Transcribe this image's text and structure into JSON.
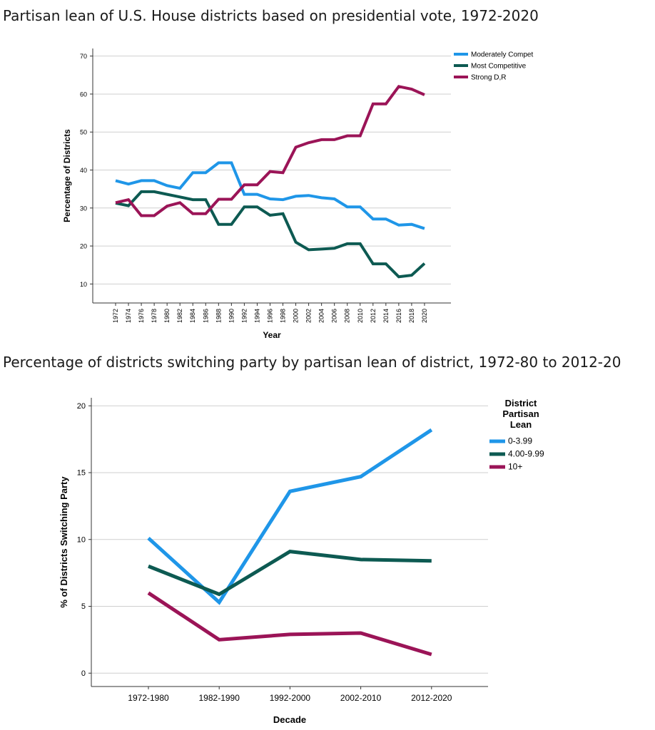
{
  "titles": {
    "chart1": "Partisan lean of U.S. House districts based on presidential vote, 1972-2020",
    "chart2": "Percentage of districts switching party by partisan lean of district, 1972-80 to 2012-20"
  },
  "chart_data": [
    {
      "type": "line",
      "xlabel": "Year",
      "ylabel": "Percentage of Districts",
      "x": [
        "1972",
        "1974",
        "1976",
        "1978",
        "1980",
        "1982",
        "1984",
        "1986",
        "1988",
        "1990",
        "1992",
        "1994",
        "1996",
        "1998",
        "2000",
        "2002",
        "2004",
        "2006",
        "2008",
        "2010",
        "2012",
        "2014",
        "2016",
        "2018",
        "2020"
      ],
      "ylim": [
        5,
        72
      ],
      "yticks": [
        10,
        20,
        30,
        40,
        50,
        60,
        70
      ],
      "grid": true,
      "legend_position": "top-right",
      "series": [
        {
          "name": "Moderately Compet",
          "color": "#1f96e8",
          "values": [
            37.2,
            36.3,
            37.2,
            37.2,
            35.9,
            35.2,
            39.3,
            39.3,
            41.9,
            41.9,
            33.6,
            33.6,
            32.4,
            32.2,
            33.1,
            33.3,
            32.7,
            32.4,
            30.3,
            30.3,
            27.1,
            27.1,
            25.5,
            25.7,
            24.6
          ]
        },
        {
          "name": "Most Competitive",
          "color": "#0d5a52",
          "values": [
            31.3,
            30.6,
            34.3,
            34.3,
            33.6,
            32.9,
            32.2,
            32.2,
            25.7,
            25.7,
            30.3,
            30.3,
            28.1,
            28.5,
            21.0,
            19.0,
            19.2,
            19.4,
            20.6,
            20.6,
            15.3,
            15.3,
            11.9,
            12.3,
            15.4
          ]
        },
        {
          "name": "Strong D,R",
          "color": "#9b1457",
          "values": [
            31.4,
            32.2,
            28.0,
            28.0,
            30.5,
            31.4,
            28.5,
            28.5,
            32.3,
            32.3,
            36.1,
            36.1,
            39.6,
            39.3,
            46.0,
            47.2,
            48.0,
            48.0,
            49.0,
            49.0,
            57.4,
            57.4,
            62.0,
            61.3,
            59.8
          ]
        }
      ]
    },
    {
      "type": "line",
      "xlabel": "Decade",
      "ylabel": "% of Districts Switching Party",
      "categories": [
        "1972-1980",
        "1982-1990",
        "1992-2000",
        "2002-2010",
        "2012-2020"
      ],
      "ylim": [
        -1,
        20.6
      ],
      "yticks": [
        0,
        5,
        10,
        15,
        20
      ],
      "grid": true,
      "legend_title": "District Partisan Lean",
      "legend_position": "top-right",
      "series": [
        {
          "name": "0-3.99",
          "color": "#1f96e8",
          "values": [
            10.1,
            5.3,
            13.6,
            14.7,
            18.2
          ]
        },
        {
          "name": "4.00-9.99",
          "color": "#0d5a52",
          "values": [
            8.0,
            5.9,
            9.1,
            8.5,
            8.4
          ]
        },
        {
          "name": "10+",
          "color": "#9b1457",
          "values": [
            6.0,
            2.5,
            2.9,
            3.0,
            1.4
          ]
        }
      ]
    }
  ]
}
